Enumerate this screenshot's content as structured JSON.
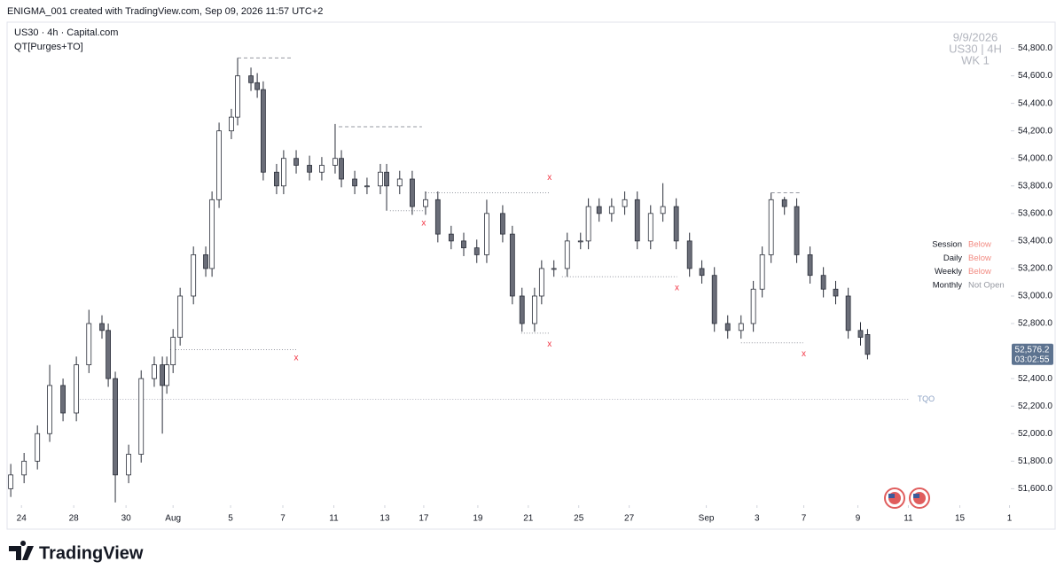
{
  "header": "ENIGMA_001 created with TradingView.com, Sep 09, 2026 11:57 UTC+2",
  "chart_data": {
    "type": "candlestick",
    "symbol": "US30 · 4h · Capital.com",
    "indicator": "QT[Purges+TO]",
    "watermark": [
      "9/9/2026",
      "US30 | 4H",
      "WK 1"
    ],
    "x": [
      -0.41,
      0.1,
      0.61,
      1.08,
      1.59,
      2.1,
      2.58,
      3.08,
      3.32,
      3.59,
      4.1,
      4.58,
      5.08,
      5.39,
      5.56,
      5.8,
      6.07,
      6.58,
      7.05,
      7.29,
      7.56,
      8.03,
      8.27,
      8.78,
      9.02,
      9.25,
      9.76,
      10.03,
      10.51,
      11.02,
      11.49,
      12.0,
      12.24,
      12.75,
      13.22,
      13.73,
      13.97,
      14.47,
      14.95,
      15.46,
      15.93,
      16.44,
      16.92,
      17.42,
      17.8,
      18.41,
      18.78,
      19.15,
      19.63,
      19.9,
      20.37,
      20.88,
      21.39,
      21.69,
      22.1,
      22.58,
      23.08,
      23.56,
      24.07,
      24.54,
      25.05,
      25.56,
      26.03,
      26.51,
      27.02,
      27.53,
      28.0,
      28.34,
      28.68,
      29.19,
      29.66,
      30.17,
      30.68,
      31.15,
      31.63,
      32.1,
      32.37
    ],
    "open": [
      51600,
      51700,
      51800,
      52000,
      52350,
      52150,
      52500,
      52800,
      52750,
      52400,
      51700,
      51850,
      52400,
      52500,
      52350,
      52500,
      52700,
      53000,
      53300,
      53200,
      53700,
      54200,
      54300,
      54600,
      54550,
      54500,
      53900,
      53800,
      54000,
      53950,
      53900,
      53950,
      54000,
      53850,
      53800,
      53800,
      53900,
      53800,
      53850,
      53650,
      53700,
      53450,
      53400,
      53350,
      53300,
      53600,
      53450,
      53000,
      52800,
      53000,
      53200,
      53200,
      53400,
      53400,
      53650,
      53600,
      53650,
      53700,
      53400,
      53600,
      53650,
      53400,
      53200,
      53150,
      52800,
      52750,
      52800,
      53050,
      53300,
      53700,
      53650,
      53300,
      53150,
      53050,
      53000,
      52750,
      52720
    ],
    "high": [
      51780,
      51860,
      52060,
      52500,
      52400,
      52560,
      52900,
      52860,
      52800,
      52450,
      51920,
      52460,
      52560,
      52560,
      52560,
      52760,
      53060,
      53360,
      53360,
      53760,
      54260,
      54360,
      54730,
      54660,
      54620,
      54560,
      53960,
      54060,
      54060,
      54020,
      54010,
      54250,
      54060,
      53910,
      53860,
      53960,
      53960,
      53910,
      53910,
      53760,
      53760,
      53510,
      53460,
      53410,
      53700,
      53660,
      53510,
      53060,
      53060,
      53260,
      53260,
      53460,
      53460,
      53710,
      53710,
      53710,
      53760,
      53760,
      53660,
      53820,
      53710,
      53460,
      53260,
      53210,
      52860,
      52860,
      53110,
      53360,
      53750,
      53720,
      53710,
      53360,
      53210,
      53110,
      53060,
      52810,
      52760
    ],
    "low": [
      51540,
      51640,
      51740,
      51940,
      52090,
      52090,
      52440,
      52690,
      52340,
      51500,
      51640,
      51790,
      52340,
      52000,
      52290,
      52440,
      52640,
      52940,
      53140,
      53140,
      53640,
      54140,
      54240,
      54490,
      54440,
      53840,
      53740,
      53740,
      53890,
      53840,
      53840,
      53890,
      53790,
      53740,
      53740,
      53740,
      53620,
      53740,
      53590,
      53590,
      53390,
      53340,
      53290,
      53240,
      53240,
      53390,
      52940,
      52740,
      52740,
      52940,
      53140,
      53140,
      53340,
      53340,
      53540,
      53540,
      53590,
      53340,
      53340,
      53540,
      53340,
      53140,
      53090,
      52740,
      52690,
      52690,
      52740,
      52990,
      53240,
      53590,
      53240,
      53090,
      52990,
      52940,
      52690,
      52640,
      52540
    ],
    "close": [
      51700,
      51800,
      52000,
      52350,
      52150,
      52500,
      52800,
      52750,
      52400,
      51700,
      51850,
      52400,
      52500,
      52350,
      52500,
      52700,
      53000,
      53300,
      53200,
      53700,
      54200,
      54300,
      54600,
      54550,
      54500,
      53900,
      53800,
      54000,
      53950,
      53900,
      53950,
      54000,
      53850,
      53800,
      53800,
      53900,
      53800,
      53850,
      53650,
      53700,
      53450,
      53400,
      53350,
      53300,
      53600,
      53450,
      53000,
      52800,
      53000,
      53200,
      53200,
      53400,
      53400,
      53650,
      53600,
      53650,
      53700,
      53400,
      53600,
      53650,
      53400,
      53200,
      53150,
      52800,
      52750,
      52800,
      53050,
      53300,
      53700,
      53650,
      53300,
      53150,
      53050,
      53000,
      52750,
      52700,
      52576.2
    ],
    "up_color": "#ffffff",
    "down_color": "#6a6d78",
    "wick_color": "#2a2e39",
    "xlim": [
      -0.55,
      37.85
    ],
    "xticks": [
      {
        "value": 0,
        "label": "24"
      },
      {
        "value": 2,
        "label": "28"
      },
      {
        "value": 4,
        "label": "30"
      },
      {
        "value": 5.8,
        "label": "Aug"
      },
      {
        "value": 8,
        "label": "5"
      },
      {
        "value": 10,
        "label": "7"
      },
      {
        "value": 11.95,
        "label": "11"
      },
      {
        "value": 13.9,
        "label": "13"
      },
      {
        "value": 15.39,
        "label": "17"
      },
      {
        "value": 17.46,
        "label": "19"
      },
      {
        "value": 19.39,
        "label": "21"
      },
      {
        "value": 21.32,
        "label": "25"
      },
      {
        "value": 23.25,
        "label": "27"
      },
      {
        "value": 26.2,
        "label": "Sep"
      },
      {
        "value": 28.14,
        "label": "3"
      },
      {
        "value": 29.93,
        "label": "7"
      },
      {
        "value": 32,
        "label": "9"
      },
      {
        "value": 33.93,
        "label": "11"
      },
      {
        "value": 35.9,
        "label": "15"
      },
      {
        "value": 37.8,
        "label": "1"
      }
    ],
    "ylim": [
      51480,
      54990
    ],
    "yticks": [
      {
        "value": 51600,
        "label": "51,600.0"
      },
      {
        "value": 51800,
        "label": "51,800.0"
      },
      {
        "value": 52000,
        "label": "52,000.0"
      },
      {
        "value": 52200,
        "label": "52,200.0"
      },
      {
        "value": 52400,
        "label": "52,400.0"
      },
      {
        "value": 52800,
        "label": "52,800.0"
      },
      {
        "value": 53000,
        "label": "53,000.0"
      },
      {
        "value": 53200,
        "label": "53,200.0"
      },
      {
        "value": 53400,
        "label": "53,400.0"
      },
      {
        "value": 53600,
        "label": "53,600.0"
      },
      {
        "value": 53800,
        "label": "53,800.0"
      },
      {
        "value": 54000,
        "label": "54,000.0"
      },
      {
        "value": 54200,
        "label": "54,200.0"
      },
      {
        "value": 54400,
        "label": "54,400.0"
      },
      {
        "value": 54600,
        "label": "54,600.0"
      },
      {
        "value": 54800,
        "label": "54,800.0"
      }
    ],
    "levels": [
      {
        "price": 54730,
        "start": 8.27,
        "end": 10.37,
        "style": "dashed"
      },
      {
        "price": 54230,
        "start": 12.14,
        "end": 15.32,
        "style": "dashed"
      },
      {
        "price": 53750,
        "start": 15.46,
        "end": 20.2,
        "style": "dotted"
      },
      {
        "price": 53620,
        "start": 14.1,
        "end": 15.39,
        "style": "dotted"
      },
      {
        "price": 52730,
        "start": 19.12,
        "end": 20.2,
        "style": "dotted"
      },
      {
        "price": 52610,
        "start": 5.69,
        "end": 10.51,
        "style": "dotted"
      },
      {
        "price": 53140,
        "start": 20.68,
        "end": 25.08,
        "style": "dotted"
      },
      {
        "price": 52660,
        "start": 27.53,
        "end": 29.9,
        "style": "dotted"
      },
      {
        "price": 53750,
        "start": 28.68,
        "end": 29.83,
        "style": "dashed"
      }
    ],
    "markers": [
      {
        "x": 20.2,
        "price": 53860,
        "label": "x"
      },
      {
        "x": 15.39,
        "price": 53530,
        "label": "x"
      },
      {
        "x": 20.2,
        "price": 52650,
        "label": "x"
      },
      {
        "x": 10.51,
        "price": 52550,
        "label": "x"
      },
      {
        "x": 25.08,
        "price": 53060,
        "label": "x"
      },
      {
        "x": 29.93,
        "price": 52580,
        "label": "x"
      }
    ],
    "marker_color": "#f23645",
    "tqo": {
      "price": 52250,
      "start": 2.24,
      "end": 33.93,
      "label": "TQO"
    },
    "last_price": {
      "value": 52576.2,
      "label": "52,576.2",
      "countdown": "03:02:55"
    },
    "status_table": [
      {
        "name": "Session",
        "state": "Below",
        "color": "#f28b82"
      },
      {
        "name": "Daily",
        "state": "Below",
        "color": "#f28b82"
      },
      {
        "name": "Weekly",
        "state": "Below",
        "color": "#f28b82"
      },
      {
        "name": "Monthly",
        "state": "Not Open",
        "color": "#9598a1"
      }
    ]
  },
  "footer": {
    "brand": "TradingView"
  }
}
